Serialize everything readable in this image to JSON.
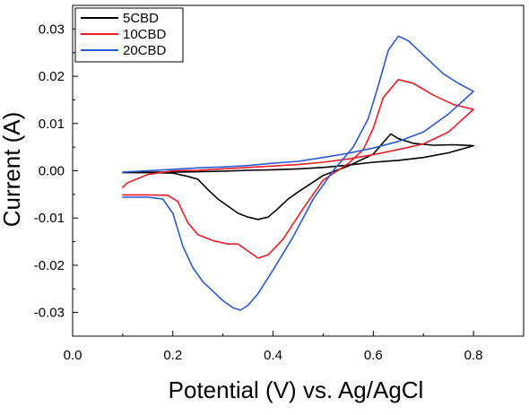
{
  "chart_data": {
    "type": "line",
    "title": "",
    "xlabel": "Potential (V) vs. Ag/AgCl",
    "ylabel": "Current (A)",
    "xlim": [
      0.0,
      0.9
    ],
    "ylim": [
      -0.035,
      0.035
    ],
    "x_ticks": [
      0.0,
      0.2,
      0.4,
      0.6,
      0.8
    ],
    "x_tick_labels": [
      "0.0",
      "0.2",
      "0.4",
      "0.6",
      "0.8"
    ],
    "y_ticks": [
      -0.03,
      -0.02,
      -0.01,
      0.0,
      0.01,
      0.02,
      0.03
    ],
    "y_tick_labels": [
      "-0.03",
      "-0.02",
      "-0.01",
      "0.00",
      "0.01",
      "0.02",
      "0.03"
    ],
    "grid": false,
    "legend_position": "top-left",
    "series": [
      {
        "name": "5CBD",
        "color": "#000000",
        "points": [
          [
            0.1,
            -0.0004
          ],
          [
            0.15,
            -0.0004
          ],
          [
            0.2,
            -0.0005
          ],
          [
            0.23,
            -0.0012
          ],
          [
            0.25,
            -0.0018
          ],
          [
            0.27,
            -0.004
          ],
          [
            0.29,
            -0.006
          ],
          [
            0.31,
            -0.0075
          ],
          [
            0.33,
            -0.009
          ],
          [
            0.35,
            -0.0098
          ],
          [
            0.37,
            -0.0103
          ],
          [
            0.39,
            -0.0098
          ],
          [
            0.41,
            -0.008
          ],
          [
            0.43,
            -0.006
          ],
          [
            0.45,
            -0.0045
          ],
          [
            0.5,
            -0.001
          ],
          [
            0.55,
            0.001
          ],
          [
            0.6,
            0.0035
          ],
          [
            0.62,
            0.006
          ],
          [
            0.635,
            0.0078
          ],
          [
            0.65,
            0.0068
          ],
          [
            0.68,
            0.0058
          ],
          [
            0.72,
            0.0054
          ],
          [
            0.76,
            0.0055
          ],
          [
            0.8,
            0.0053
          ],
          [
            0.75,
            0.0038
          ],
          [
            0.7,
            0.0028
          ],
          [
            0.65,
            0.0022
          ],
          [
            0.6,
            0.0018
          ],
          [
            0.55,
            0.0012
          ],
          [
            0.5,
            0.0007
          ],
          [
            0.45,
            0.0004
          ],
          [
            0.4,
            0.0002
          ],
          [
            0.35,
            0.0001
          ],
          [
            0.3,
            -0.0001
          ],
          [
            0.25,
            -0.0002
          ],
          [
            0.2,
            -0.0003
          ],
          [
            0.15,
            -0.0003
          ],
          [
            0.1,
            -0.0004
          ]
        ]
      },
      {
        "name": "10CBD",
        "color": "#ee1c25",
        "points": [
          [
            0.1,
            -0.0051
          ],
          [
            0.15,
            -0.0051
          ],
          [
            0.19,
            -0.0052
          ],
          [
            0.21,
            -0.0065
          ],
          [
            0.23,
            -0.011
          ],
          [
            0.25,
            -0.0135
          ],
          [
            0.28,
            -0.0148
          ],
          [
            0.31,
            -0.0155
          ],
          [
            0.33,
            -0.0155
          ],
          [
            0.35,
            -0.017
          ],
          [
            0.37,
            -0.0185
          ],
          [
            0.39,
            -0.0178
          ],
          [
            0.42,
            -0.0145
          ],
          [
            0.46,
            -0.008
          ],
          [
            0.5,
            -0.002
          ],
          [
            0.55,
            0.0015
          ],
          [
            0.58,
            0.0045
          ],
          [
            0.6,
            0.009
          ],
          [
            0.62,
            0.0155
          ],
          [
            0.65,
            0.0193
          ],
          [
            0.68,
            0.0185
          ],
          [
            0.72,
            0.016
          ],
          [
            0.76,
            0.014
          ],
          [
            0.8,
            0.013
          ],
          [
            0.75,
            0.0082
          ],
          [
            0.7,
            0.0057
          ],
          [
            0.65,
            0.0045
          ],
          [
            0.6,
            0.0034
          ],
          [
            0.55,
            0.0025
          ],
          [
            0.5,
            0.0018
          ],
          [
            0.45,
            0.0013
          ],
          [
            0.4,
            0.001
          ],
          [
            0.35,
            0.0007
          ],
          [
            0.3,
            0.0004
          ],
          [
            0.25,
            0.0001
          ],
          [
            0.2,
            0.0
          ],
          [
            0.15,
            -0.0008
          ],
          [
            0.11,
            -0.0025
          ],
          [
            0.1,
            -0.0035
          ]
        ]
      },
      {
        "name": "20CBD",
        "color": "#2b59d9",
        "points": [
          [
            0.1,
            -0.0056
          ],
          [
            0.15,
            -0.0056
          ],
          [
            0.18,
            -0.006
          ],
          [
            0.2,
            -0.009
          ],
          [
            0.22,
            -0.016
          ],
          [
            0.24,
            -0.0205
          ],
          [
            0.26,
            -0.0235
          ],
          [
            0.28,
            -0.0255
          ],
          [
            0.3,
            -0.0275
          ],
          [
            0.32,
            -0.029
          ],
          [
            0.335,
            -0.0295
          ],
          [
            0.35,
            -0.0285
          ],
          [
            0.37,
            -0.026
          ],
          [
            0.4,
            -0.021
          ],
          [
            0.44,
            -0.014
          ],
          [
            0.48,
            -0.006
          ],
          [
            0.52,
            0.0
          ],
          [
            0.56,
            0.005
          ],
          [
            0.59,
            0.011
          ],
          [
            0.61,
            0.018
          ],
          [
            0.63,
            0.0255
          ],
          [
            0.65,
            0.0285
          ],
          [
            0.67,
            0.0275
          ],
          [
            0.7,
            0.0245
          ],
          [
            0.74,
            0.0205
          ],
          [
            0.77,
            0.0185
          ],
          [
            0.8,
            0.0168
          ],
          [
            0.75,
            0.012
          ],
          [
            0.7,
            0.0082
          ],
          [
            0.65,
            0.0062
          ],
          [
            0.6,
            0.0048
          ],
          [
            0.55,
            0.0037
          ],
          [
            0.5,
            0.0028
          ],
          [
            0.45,
            0.002
          ],
          [
            0.4,
            0.0016
          ],
          [
            0.35,
            0.0011
          ],
          [
            0.3,
            0.0008
          ],
          [
            0.25,
            0.0006
          ],
          [
            0.2,
            0.0003
          ],
          [
            0.15,
            0.0
          ],
          [
            0.1,
            -0.0003
          ]
        ]
      }
    ]
  }
}
